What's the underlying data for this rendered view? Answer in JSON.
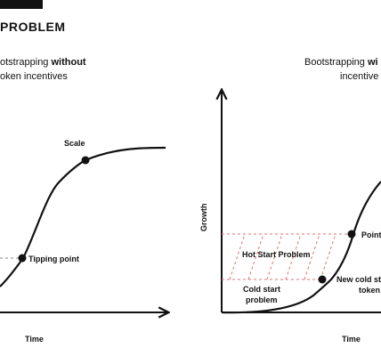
{
  "header": {
    "section_title": "PROBLEM"
  },
  "left_panel": {
    "title_prefix": "otstrapping ",
    "title_bold": "without",
    "title_line2": "oken incentives",
    "labels": {
      "scale": "Scale",
      "tipping_point": "Tipping point",
      "x_axis": "Time"
    }
  },
  "right_panel": {
    "title_prefix": "Bootstrapping ",
    "title_bold": "wi",
    "title_line2": "incentive",
    "labels": {
      "y_axis": "Growth",
      "x_axis": "Time",
      "hot_start": "Hot Start Problem",
      "cold_start_line1": "Cold start",
      "cold_start_line2": "problem",
      "point": "Point",
      "new_cold_line1": "New cold st",
      "new_cold_line2": "token"
    }
  },
  "colors": {
    "ink": "#111111",
    "hot_start_hatch": "#e07070",
    "dashed_guide": "#888888"
  }
}
